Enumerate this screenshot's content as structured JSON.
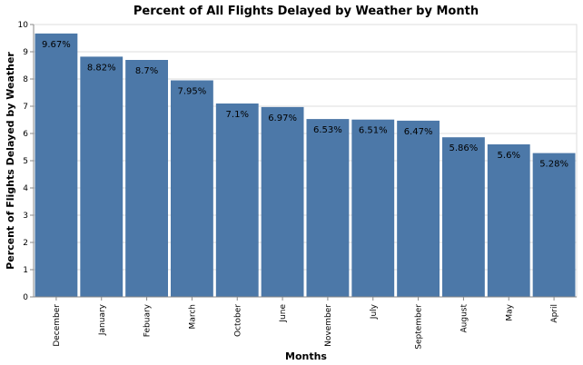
{
  "chart_data": {
    "type": "bar",
    "title": "Percent of All Flights Delayed by Weather by Month",
    "xlabel": "Months",
    "ylabel": "Percent of Flights Delayed by Weather",
    "categories": [
      "December",
      "January",
      "Febuary",
      "March",
      "October",
      "June",
      "November",
      "July",
      "September",
      "August",
      "May",
      "April"
    ],
    "values": [
      9.67,
      8.82,
      8.7,
      7.95,
      7.1,
      6.97,
      6.53,
      6.51,
      6.47,
      5.86,
      5.6,
      5.28
    ],
    "data_labels": [
      "9.67%",
      "8.82%",
      "8.7%",
      "7.95%",
      "7.1%",
      "6.97%",
      "6.53%",
      "6.51%",
      "6.47%",
      "5.86%",
      "5.6%",
      "5.28%"
    ],
    "ylim": [
      0,
      10
    ],
    "yticks": [
      0,
      1,
      2,
      3,
      4,
      5,
      6,
      7,
      8,
      9,
      10
    ],
    "grid": true,
    "bar_color": "#4c78a8"
  }
}
